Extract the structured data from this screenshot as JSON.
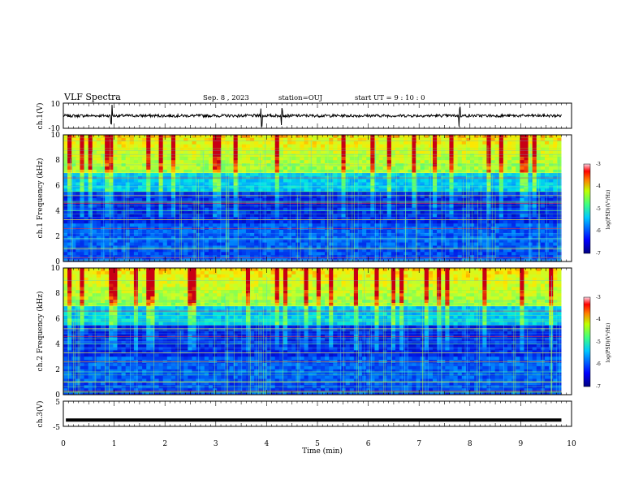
{
  "header": {
    "title": "VLF Spectra",
    "date": "Sep. 8 , 2023",
    "station": "station=OUJ",
    "start": "start UT =  9 : 10 : 0"
  },
  "colors": {
    "background": "#ffffff",
    "axes": "#000000",
    "trace": "#000000",
    "colormap": [
      "#00007f",
      "#0000ff",
      "#00ffff",
      "#7fff00",
      "#ffff00",
      "#ff7f00",
      "#ff0000",
      "#7f0000"
    ]
  },
  "chart_data": [
    {
      "type": "line",
      "ylabel": "ch.1(V)",
      "ylim": [
        -10,
        10
      ],
      "yticks": [
        "10",
        "-10"
      ],
      "xlim": [
        0,
        10
      ],
      "description_values": {
        "baseline_V": 0,
        "spike_times_min": [
          0.95,
          3.9,
          4.3,
          7.8
        ]
      }
    },
    {
      "type": "heatmap",
      "ylabel": "ch.1 Frequency (kHz)",
      "ylim": [
        0,
        10
      ],
      "yticks": [
        "0",
        "2",
        "4",
        "6",
        "8",
        "10"
      ],
      "xlim": [
        0,
        9.8
      ],
      "colorbar": {
        "label": "log(PSD)(V²/Hz)",
        "range": [
          -7,
          -3
        ],
        "ticks": [
          "-3",
          "-4",
          "-5",
          "-6",
          "-7"
        ]
      },
      "bands_kHz": [
        0.3,
        1.0,
        1.8,
        2.6,
        3.3,
        4.0,
        4.6,
        5.2,
        5.9,
        6.6,
        7.0
      ]
    },
    {
      "type": "heatmap",
      "ylabel": "ch.2 Frequency (kHz)",
      "ylim": [
        0,
        10
      ],
      "yticks": [
        "0",
        "2",
        "4",
        "6",
        "8",
        "10"
      ],
      "xlim": [
        0,
        9.8
      ],
      "colorbar": {
        "label": "log(PSD)(V²/Hz)",
        "range": [
          -7,
          -3
        ],
        "ticks": [
          "-3",
          "-4",
          "-5",
          "-6",
          "-7"
        ]
      },
      "bands_kHz": [
        0.3,
        1.0,
        1.8,
        2.6,
        3.3,
        4.0,
        4.6,
        5.2,
        5.9,
        6.6,
        7.0
      ]
    },
    {
      "type": "line",
      "ylabel": "ch.3(V)",
      "ylim": [
        -5,
        5
      ],
      "yticks": [
        "5",
        "-5"
      ],
      "xlabel": "Time  (min)",
      "xlim": [
        0,
        10
      ],
      "xticks": [
        "0",
        "1",
        "2",
        "3",
        "4",
        "5",
        "6",
        "7",
        "8",
        "9",
        "10"
      ],
      "values_V": -2.5
    }
  ]
}
